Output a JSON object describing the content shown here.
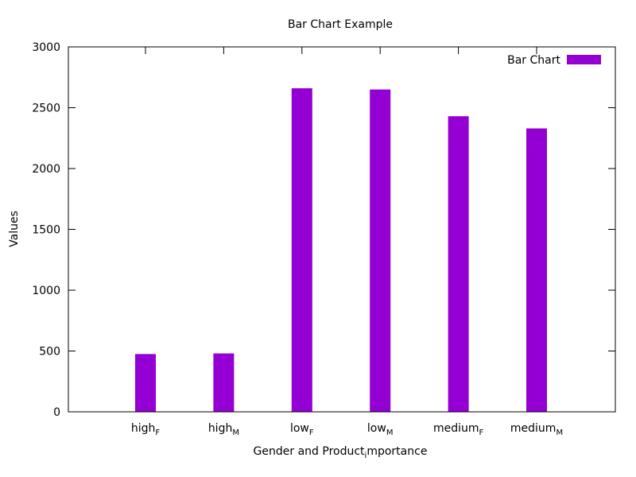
{
  "colors": {
    "bar": "#9400d3",
    "axis": "#000000",
    "background": "#ffffff"
  },
  "chart_data": {
    "type": "bar",
    "title": "Bar Chart Example",
    "xlabel": "Gender and Product_importance",
    "xlabel_parts": {
      "main": "Gender and Product",
      "subscript": "i",
      "rest": "mportance"
    },
    "ylabel": "Values",
    "ylim": [
      0,
      3000
    ],
    "yticks": [
      0,
      500,
      1000,
      1500,
      2000,
      2500,
      3000
    ],
    "categories": [
      "high_F",
      "high_M",
      "low_F",
      "low_M",
      "medium_F",
      "medium_M"
    ],
    "category_parts": [
      {
        "main": "high",
        "sub": "F"
      },
      {
        "main": "high",
        "sub": "M"
      },
      {
        "main": "low",
        "sub": "F"
      },
      {
        "main": "low",
        "sub": "M"
      },
      {
        "main": "medium",
        "sub": "F"
      },
      {
        "main": "medium",
        "sub": "M"
      }
    ],
    "series": [
      {
        "name": "Bar Chart",
        "values": [
          475,
          480,
          2660,
          2650,
          2430,
          2330
        ]
      }
    ],
    "legend_position": "top-right",
    "grid": false
  }
}
